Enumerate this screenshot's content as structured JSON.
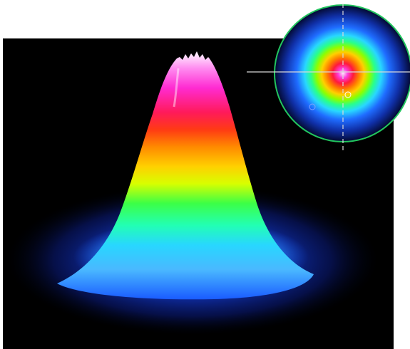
{
  "figure": {
    "icons": [
      "beam-profile-3d-icon",
      "beam-profile-2d-inset-icon",
      "crosshair-icon"
    ],
    "colors": {
      "background": "#000000",
      "page": "#ffffff",
      "inset_ring": "#22c55e",
      "crosshair": "#d8d8d8",
      "colormap": [
        "#000418",
        "#0a1e8c",
        "#1f5cff",
        "#28d7ff",
        "#32ff6e",
        "#c8ff00",
        "#ffd000",
        "#ff7a00",
        "#ff1a3c",
        "#ff2bd2",
        "#ffd6ff"
      ]
    }
  }
}
